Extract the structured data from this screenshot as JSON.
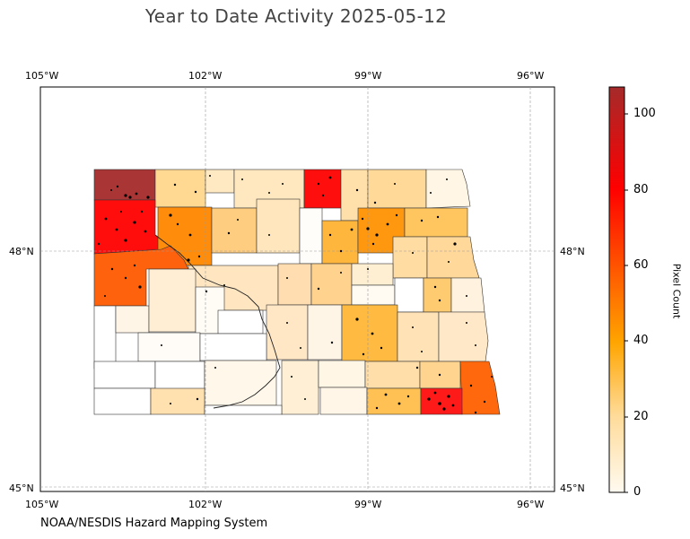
{
  "title": "Year to Date Activity 2025-05-12",
  "map": {
    "lon_ticks_top": [
      "105°W",
      "102°W",
      "99°W",
      "96°W"
    ],
    "lon_ticks_bottom": [
      "105°W",
      "102°W",
      "99°W",
      "96°W"
    ],
    "lat_ticks_left": [
      "48°N",
      "45°N"
    ],
    "lat_ticks_right": [
      "48°N",
      "45°N"
    ],
    "extent": {
      "lon_min": -105,
      "lon_max": -95.5,
      "lat_min": 45,
      "lat_max": 50.1
    }
  },
  "colorbar": {
    "label": "Pixel Count",
    "ticks": [
      "0",
      "20",
      "40",
      "60",
      "80",
      "100"
    ],
    "range": [
      0,
      107
    ],
    "colors": [
      "#fffaf0",
      "#ffdb99",
      "#ffa500",
      "#ff0000",
      "#a52a2a"
    ]
  },
  "credit": "NOAA/NESDIS Hazard Mapping System"
}
